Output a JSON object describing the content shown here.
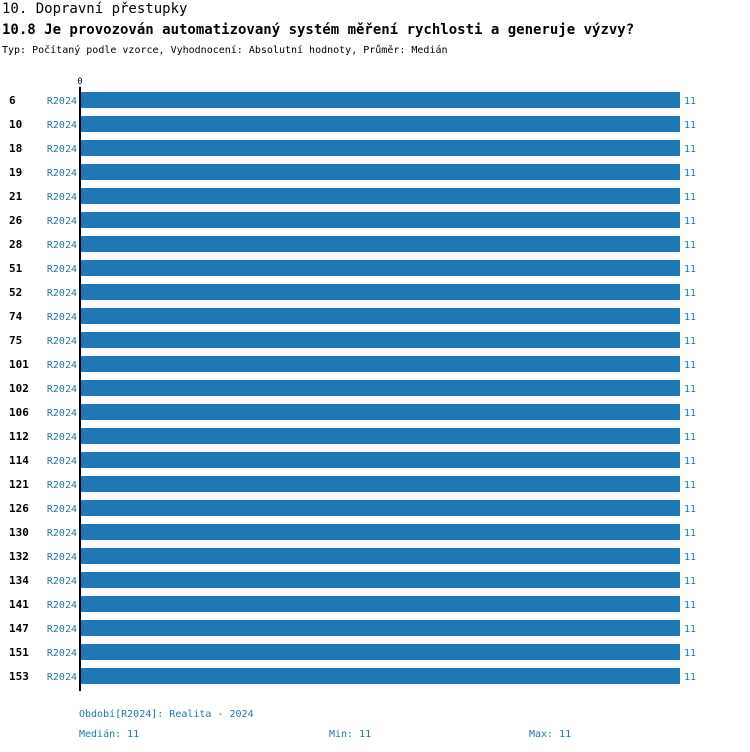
{
  "header": {
    "title": "10. Dopravní přestupky",
    "question": "10.8 Je provozován automatizovaný systém měření rychlosti a generuje výzvy?",
    "meta": "Typ: Počítaný podle vzorce, Vyhodnocení: Absolutní hodnoty, Průměr: Medián"
  },
  "colors": {
    "bar": "#1f77b4",
    "label": "#1f77b4",
    "text": "#000000"
  },
  "chart_data": {
    "type": "bar",
    "orientation": "horizontal",
    "x_tick_label": "0",
    "xlim": [
      0,
      11
    ],
    "categories": [
      "6",
      "10",
      "18",
      "19",
      "21",
      "26",
      "28",
      "51",
      "52",
      "74",
      "75",
      "101",
      "102",
      "106",
      "112",
      "114",
      "121",
      "126",
      "130",
      "132",
      "134",
      "141",
      "147",
      "151",
      "153"
    ],
    "series": [
      {
        "name": "R2024",
        "values": [
          11,
          11,
          11,
          11,
          11,
          11,
          11,
          11,
          11,
          11,
          11,
          11,
          11,
          11,
          11,
          11,
          11,
          11,
          11,
          11,
          11,
          11,
          11,
          11,
          11
        ]
      }
    ],
    "grid": false
  },
  "footer": {
    "period": "Období[R2024]: Realita - 2024",
    "median": "Medián: 11",
    "min": "Min: 11",
    "max": "Max: 11"
  }
}
